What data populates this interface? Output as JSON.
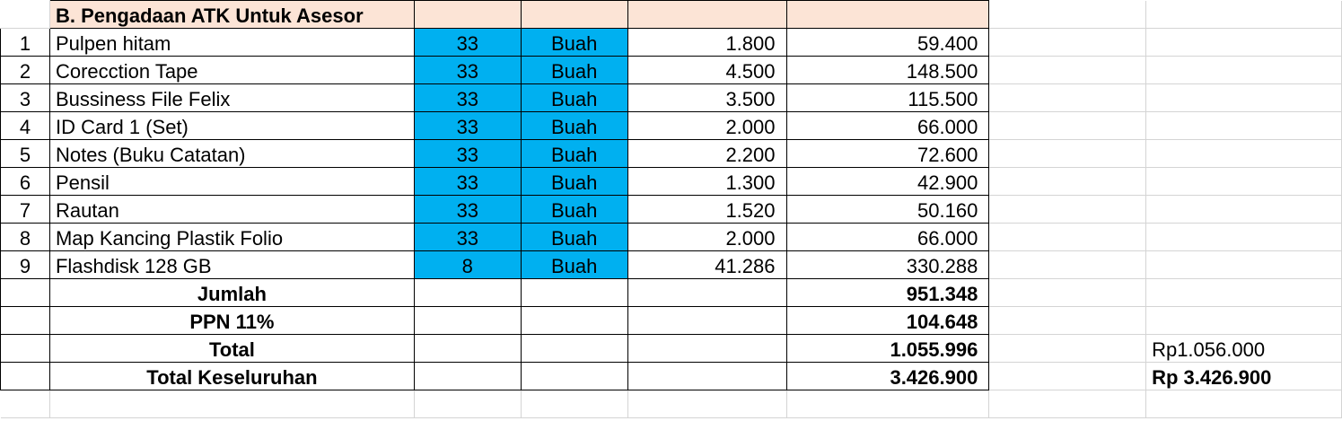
{
  "section_title": "B. Pengadaan ATK Untuk Asesor",
  "items": [
    {
      "no": "1",
      "name": "Pulpen hitam",
      "qty": "33",
      "unit": "Buah",
      "price": "1.800",
      "total": "59.400"
    },
    {
      "no": "2",
      "name": "Corecction Tape",
      "qty": "33",
      "unit": "Buah",
      "price": "4.500",
      "total": "148.500"
    },
    {
      "no": "3",
      "name": "Bussiness File Felix",
      "qty": "33",
      "unit": "Buah",
      "price": "3.500",
      "total": "115.500"
    },
    {
      "no": "4",
      "name": "ID Card 1 (Set)",
      "qty": "33",
      "unit": "Buah",
      "price": "2.000",
      "total": "66.000"
    },
    {
      "no": "5",
      "name": "Notes (Buku Catatan)",
      "qty": "33",
      "unit": "Buah",
      "price": "2.200",
      "total": "72.600"
    },
    {
      "no": "6",
      "name": "Pensil",
      "qty": "33",
      "unit": "Buah",
      "price": "1.300",
      "total": "42.900"
    },
    {
      "no": "7",
      "name": "Rautan",
      "qty": "33",
      "unit": "Buah",
      "price": "1.520",
      "total": "50.160"
    },
    {
      "no": "8",
      "name": "Map Kancing Plastik Folio",
      "qty": "33",
      "unit": "Buah",
      "price": "2.000",
      "total": "66.000"
    },
    {
      "no": "9",
      "name": "Flashdisk 128 GB",
      "qty": "8",
      "unit": "Buah",
      "price": "41.286",
      "total": "330.288"
    }
  ],
  "summary": [
    {
      "label": "Jumlah",
      "value": "951.348",
      "side": ""
    },
    {
      "label": "PPN 11%",
      "value": "104.648",
      "side": ""
    },
    {
      "label": "Total",
      "value": "1.055.996",
      "side": "Rp1.056.000"
    },
    {
      "label": "Total Keseluruhan",
      "value": "3.426.900",
      "side": "Rp 3.426.900"
    }
  ],
  "colors": {
    "header_fill": "#fce4d6",
    "qty_unit_fill": "#00b0f0",
    "gridline": "#d4d4d4"
  }
}
